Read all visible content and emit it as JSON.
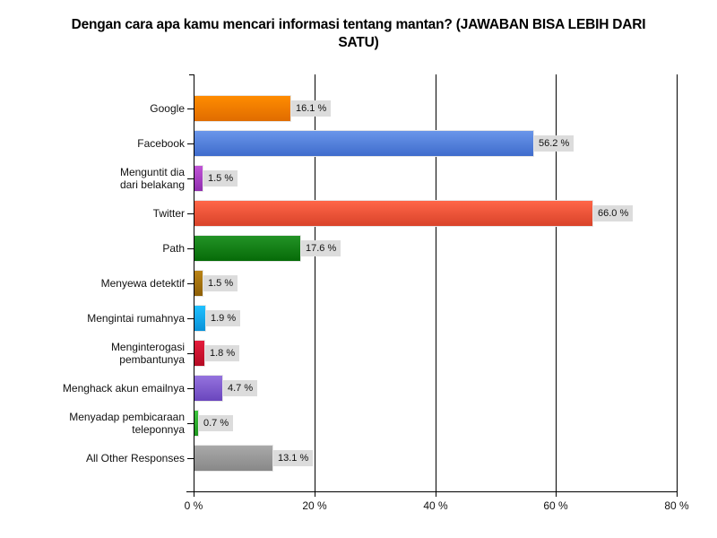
{
  "chart_data": {
    "type": "bar",
    "orientation": "horizontal",
    "title": "Dengan cara apa kamu mencari informasi tentang mantan? (JAWABAN BISA LEBIH DARI SATU)",
    "xlabel": "",
    "ylabel": "",
    "xlim": [
      0,
      80
    ],
    "grid": true,
    "legend": null,
    "x_ticks": [
      "0 %",
      "20 %",
      "40 %",
      "60 %",
      "80 %"
    ],
    "categories": [
      "Google",
      "Facebook",
      "Menguntit dia dari belakang",
      "Twitter",
      "Path",
      "Menyewa detektif",
      "Mengintai rumahnya",
      "Menginterogasi pembantunya",
      "Menghack akun emailnya",
      "Menyadap pembicaraan teleponnya",
      "All Other Responses"
    ],
    "values": [
      16.1,
      56.2,
      1.5,
      66.0,
      17.6,
      1.5,
      1.9,
      1.8,
      4.7,
      0.7,
      13.1
    ],
    "value_labels": [
      "16.1 %",
      "56.2 %",
      "1.5 %",
      "66.0 %",
      "17.6 %",
      "1.5 %",
      "1.9 %",
      "1.8 %",
      "4.7 %",
      "0.7 %",
      "13.1 %"
    ],
    "colors": [
      "#f07f05",
      "#4f7fd8",
      "#a23fc0",
      "#e9543b",
      "#0f7a12",
      "#a4700e",
      "#12a8e8",
      "#c8102e",
      "#7a55c9",
      "#2aa82a",
      "#999999"
    ]
  },
  "title_line1": "Dengan cara apa kamu mencari informasi tentang mantan? (JAWABAN BISA LEBIH DARI",
  "title_line2": "SATU)",
  "rows": [
    {
      "label_lines": [
        "Google"
      ],
      "value": 16.1,
      "label": "16.1 %",
      "top": [
        "#ff8c00",
        "#e06c00"
      ]
    },
    {
      "label_lines": [
        "Facebook"
      ],
      "value": 56.2,
      "label": "56.2 %",
      "top": [
        "#6a96ea",
        "#3f6ccc"
      ]
    },
    {
      "label_lines": [
        "Menguntit dia",
        "dari belakang"
      ],
      "value": 1.5,
      "label": "1.5 %",
      "top": [
        "#c054d6",
        "#8f2fae"
      ]
    },
    {
      "label_lines": [
        "Twitter"
      ],
      "value": 66.0,
      "label": "66.0 %",
      "top": [
        "#ff6648",
        "#d9432a"
      ]
    },
    {
      "label_lines": [
        "Path"
      ],
      "value": 17.6,
      "label": "17.6 %",
      "top": [
        "#239326",
        "#066b08"
      ]
    },
    {
      "label_lines": [
        "Menyewa detektif"
      ],
      "value": 1.5,
      "label": "1.5 %",
      "top": [
        "#b98417",
        "#8e5f06"
      ]
    },
    {
      "label_lines": [
        "Mengintai rumahnya"
      ],
      "value": 1.9,
      "label": "1.9 %",
      "top": [
        "#1fc0ff",
        "#0a92d8"
      ]
    },
    {
      "label_lines": [
        "Menginterogasi",
        "pembantunya"
      ],
      "value": 1.8,
      "label": "1.8 %",
      "top": [
        "#e41d3c",
        "#b40b24"
      ]
    },
    {
      "label_lines": [
        "Menghack akun emailnya"
      ],
      "value": 4.7,
      "label": "4.7 %",
      "top": [
        "#9573de",
        "#6a46bd"
      ]
    },
    {
      "label_lines": [
        "Menyadap pembicaraan",
        "teleponnya"
      ],
      "value": 0.7,
      "label": "0.7 %",
      "top": [
        "#3cc23c",
        "#1d961d"
      ]
    },
    {
      "label_lines": [
        "All Other Responses"
      ],
      "value": 13.1,
      "label": "13.1 %",
      "top": [
        "#a9a9a9",
        "#888888"
      ]
    }
  ]
}
